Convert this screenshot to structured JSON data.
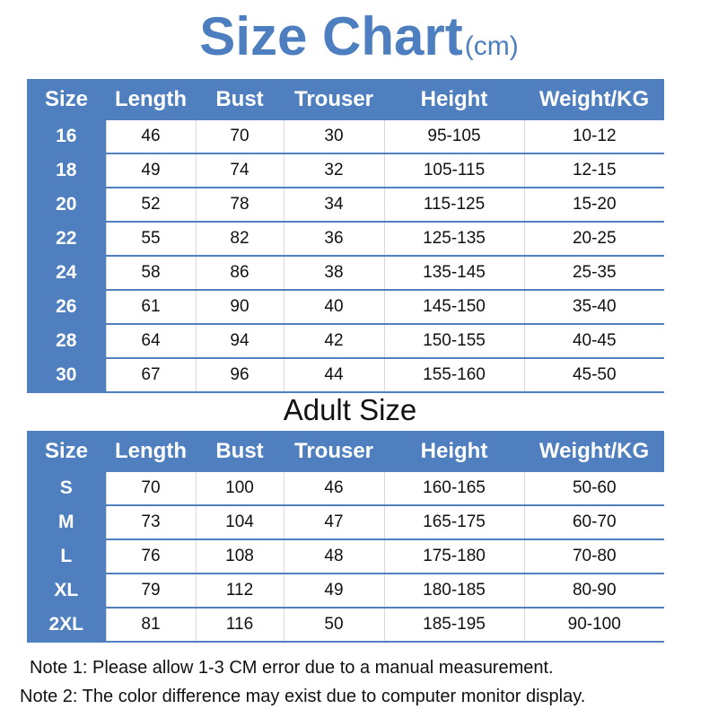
{
  "title": {
    "main": "Size Chart",
    "unit": "(cm)"
  },
  "headers": [
    "Size",
    "Length",
    "Bust",
    "Trouser",
    "Height",
    "Weight/KG"
  ],
  "kids_rows": [
    [
      "16",
      "46",
      "70",
      "30",
      "95-105",
      "10-12"
    ],
    [
      "18",
      "49",
      "74",
      "32",
      "105-115",
      "12-15"
    ],
    [
      "20",
      "52",
      "78",
      "34",
      "115-125",
      "15-20"
    ],
    [
      "22",
      "55",
      "82",
      "36",
      "125-135",
      "20-25"
    ],
    [
      "24",
      "58",
      "86",
      "38",
      "135-145",
      "25-35"
    ],
    [
      "26",
      "61",
      "90",
      "40",
      "145-150",
      "35-40"
    ],
    [
      "28",
      "64",
      "94",
      "42",
      "150-155",
      "40-45"
    ],
    [
      "30",
      "67",
      "96",
      "44",
      "155-160",
      "45-50"
    ]
  ],
  "adult_title": "Adult Size",
  "adult_rows": [
    [
      "S",
      "70",
      "100",
      "46",
      "160-165",
      "50-60"
    ],
    [
      "M",
      "73",
      "104",
      "47",
      "165-175",
      "60-70"
    ],
    [
      "L",
      "76",
      "108",
      "48",
      "175-180",
      "70-80"
    ],
    [
      "XL",
      "79",
      "112",
      "49",
      "180-185",
      "80-90"
    ],
    [
      "2XL",
      "81",
      "116",
      "50",
      "185-195",
      "90-100"
    ]
  ],
  "notes": [
    "Note 1: Please allow 1-3 CM error due to a manual measurement.",
    "Note 2: The color difference may exist due to computer monitor display."
  ],
  "colors": {
    "accent": "#4f7fbf"
  }
}
